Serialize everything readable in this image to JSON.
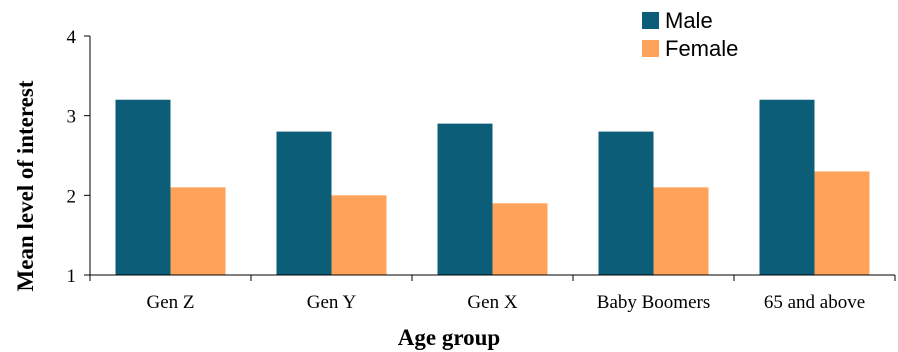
{
  "chart_data": {
    "type": "bar",
    "categories": [
      "Gen Z",
      "Gen Y",
      "Gen X",
      "Baby Boomers",
      "65 and above"
    ],
    "series": [
      {
        "name": "Male",
        "color": "#0b5d78",
        "values": [
          3.2,
          2.8,
          2.9,
          2.8,
          3.2
        ]
      },
      {
        "name": "Female",
        "color": "#ffa25a",
        "values": [
          2.1,
          2.0,
          1.9,
          2.1,
          2.3
        ]
      }
    ],
    "xlabel": "Age group",
    "ylabel": "Mean level of interest",
    "ylim": [
      1,
      4
    ],
    "yticks": [
      1,
      2,
      3,
      4
    ],
    "grid": false,
    "legend": "top-right"
  }
}
